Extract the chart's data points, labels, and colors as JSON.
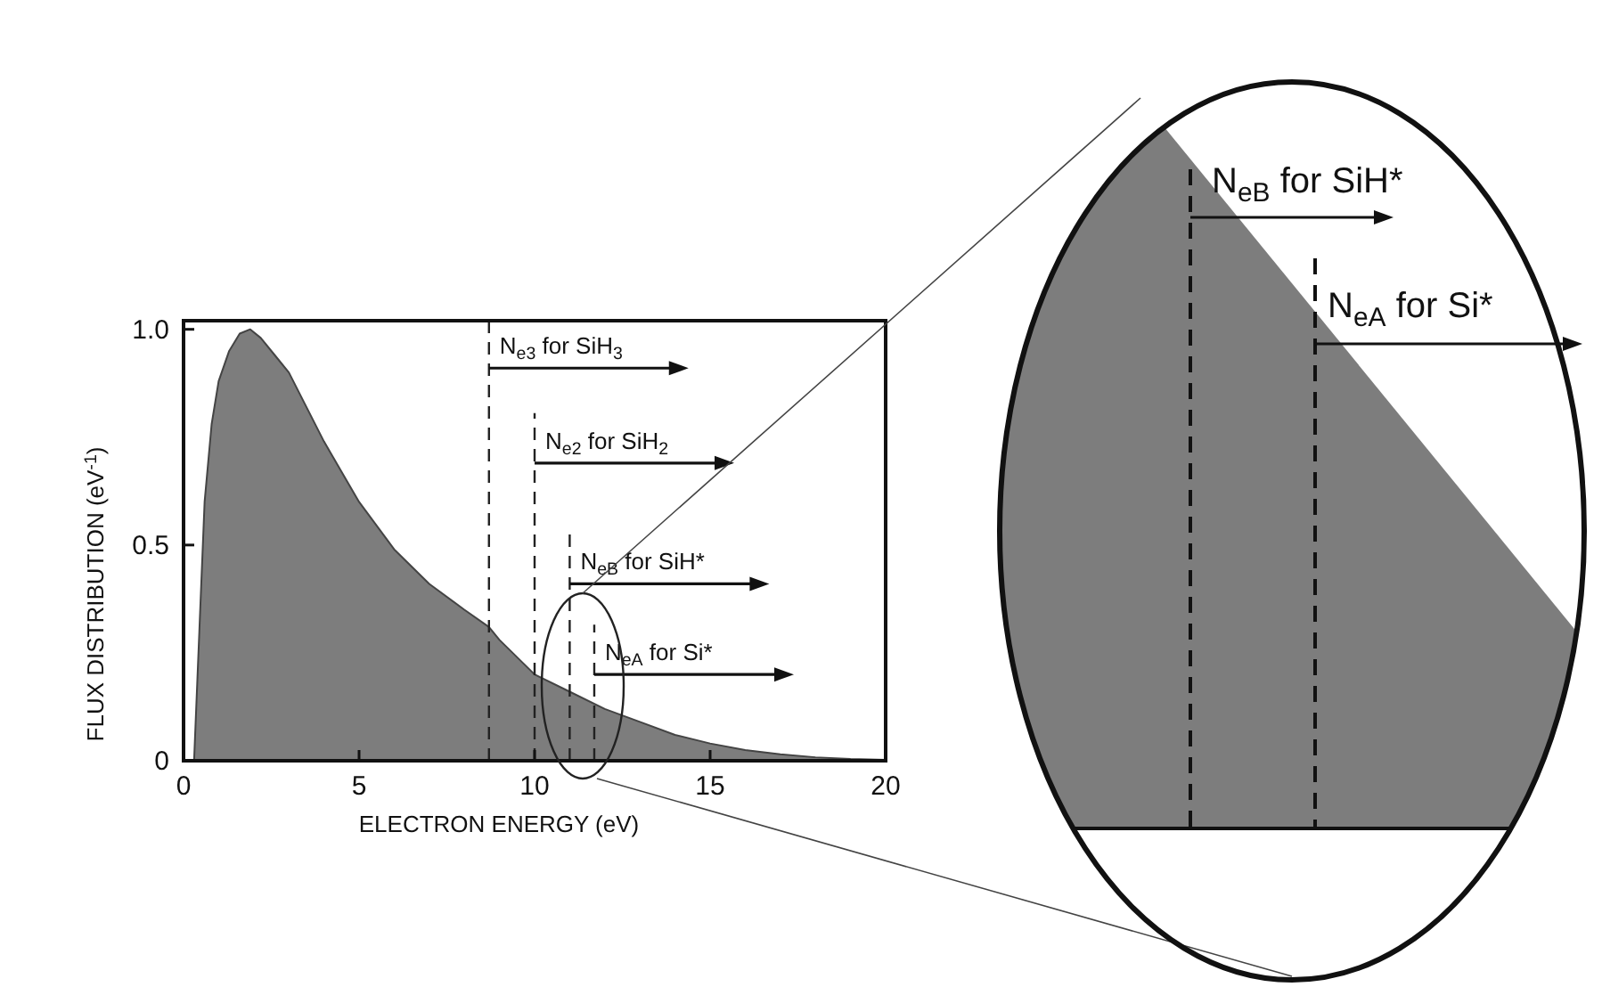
{
  "chart_data": {
    "type": "area",
    "xlabel": "ELECTRON ENERGY (eV)",
    "ylabel": "FLUX DISTRIBUTION (eV$^{-1}$)",
    "x": [
      0.3,
      0.45,
      0.6,
      0.8,
      1.0,
      1.3,
      1.6,
      1.9,
      2.2,
      2.6,
      3,
      3.5,
      4,
      5,
      6,
      7,
      8,
      8.7,
      9,
      10,
      11,
      12,
      13,
      14,
      15,
      16,
      17,
      18,
      19,
      20
    ],
    "series": [
      {
        "color": "#7d7d7d",
        "values": [
          0,
          0.3,
          0.6,
          0.78,
          0.88,
          0.95,
          0.99,
          1.0,
          0.98,
          0.94,
          0.9,
          0.82,
          0.74,
          0.6,
          0.49,
          0.41,
          0.35,
          0.31,
          0.28,
          0.2,
          0.16,
          0.12,
          0.09,
          0.06,
          0.04,
          0.025,
          0.015,
          0.008,
          0.004,
          0.002
        ]
      }
    ],
    "xlim": [
      0,
      20
    ],
    "ylim": [
      0,
      1.02
    ],
    "xticks": [
      0,
      5,
      10,
      15,
      20
    ],
    "yticks": [
      0,
      0.5,
      {
        "value": 1,
        "label": "1.0"
      }
    ],
    "ref_lines": [
      {
        "axis": "x",
        "value": 8.7,
        "line_style": "dashed",
        "color": "#222222"
      },
      {
        "axis": "x",
        "value": 10.0,
        "line_style": "dashed",
        "color": "#222222"
      },
      {
        "axis": "x",
        "value": 11.0,
        "line_style": "dashed",
        "color": "#222222"
      },
      {
        "axis": "x",
        "value": 11.7,
        "line_style": "dashed",
        "color": "#222222"
      }
    ],
    "annotations": [
      {
        "text": "N$_{e3}$ for SiH$_{3}$",
        "x": 8.7,
        "y": 0.91
      },
      {
        "text": "N$_{e2}$ for SiH$_{2}$",
        "x": 10.0,
        "y": 0.69
      },
      {
        "text": "N$_{eB}$ for SiH*",
        "x": 11.0,
        "y": 0.41
      },
      {
        "text": "N$_{eA}$ for Si*",
        "x": 11.7,
        "y": 0.2
      },
      "N$_{eB}$ for SiH*",
      "N$_{eA}$ for Si*"
    ],
    "grid": false
  }
}
